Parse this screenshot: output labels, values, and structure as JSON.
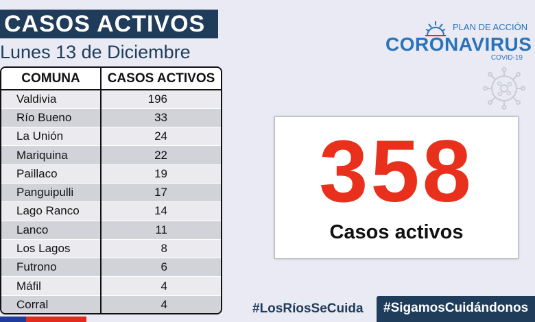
{
  "header": {
    "title": "CASOS ACTIVOS",
    "date": "Lunes 13 de Diciembre"
  },
  "table": {
    "columns": [
      "COMUNA",
      "CASOS ACTIVOS"
    ],
    "rows": [
      {
        "comuna": "Valdivia",
        "casos": "196"
      },
      {
        "comuna": "Río Bueno",
        "casos": "33"
      },
      {
        "comuna": "La Unión",
        "casos": "24"
      },
      {
        "comuna": "Mariquina",
        "casos": "22"
      },
      {
        "comuna": "Paillaco",
        "casos": "19"
      },
      {
        "comuna": "Panguipulli",
        "casos": "17"
      },
      {
        "comuna": "Lago Ranco",
        "casos": "14"
      },
      {
        "comuna": "Lanco",
        "casos": "11"
      },
      {
        "comuna": "Los Lagos",
        "casos": "8"
      },
      {
        "comuna": "Futrono",
        "casos": "6"
      },
      {
        "comuna": "Máfil",
        "casos": "4"
      },
      {
        "comuna": "Corral",
        "casos": "4"
      }
    ]
  },
  "logo": {
    "plan": "PLAN DE ACCIÓN",
    "main": "CORONAVIRUS",
    "sub": "COVID-19"
  },
  "total": {
    "number": "358",
    "caption": "Casos activos"
  },
  "hashtags": {
    "first": "#LosRíosSeCuida",
    "second": "#SigamosCuidándonos"
  },
  "colors": {
    "navy": "#1f3c5a",
    "accent_red": "#e8301c",
    "logo_blue": "#2b73b8"
  }
}
